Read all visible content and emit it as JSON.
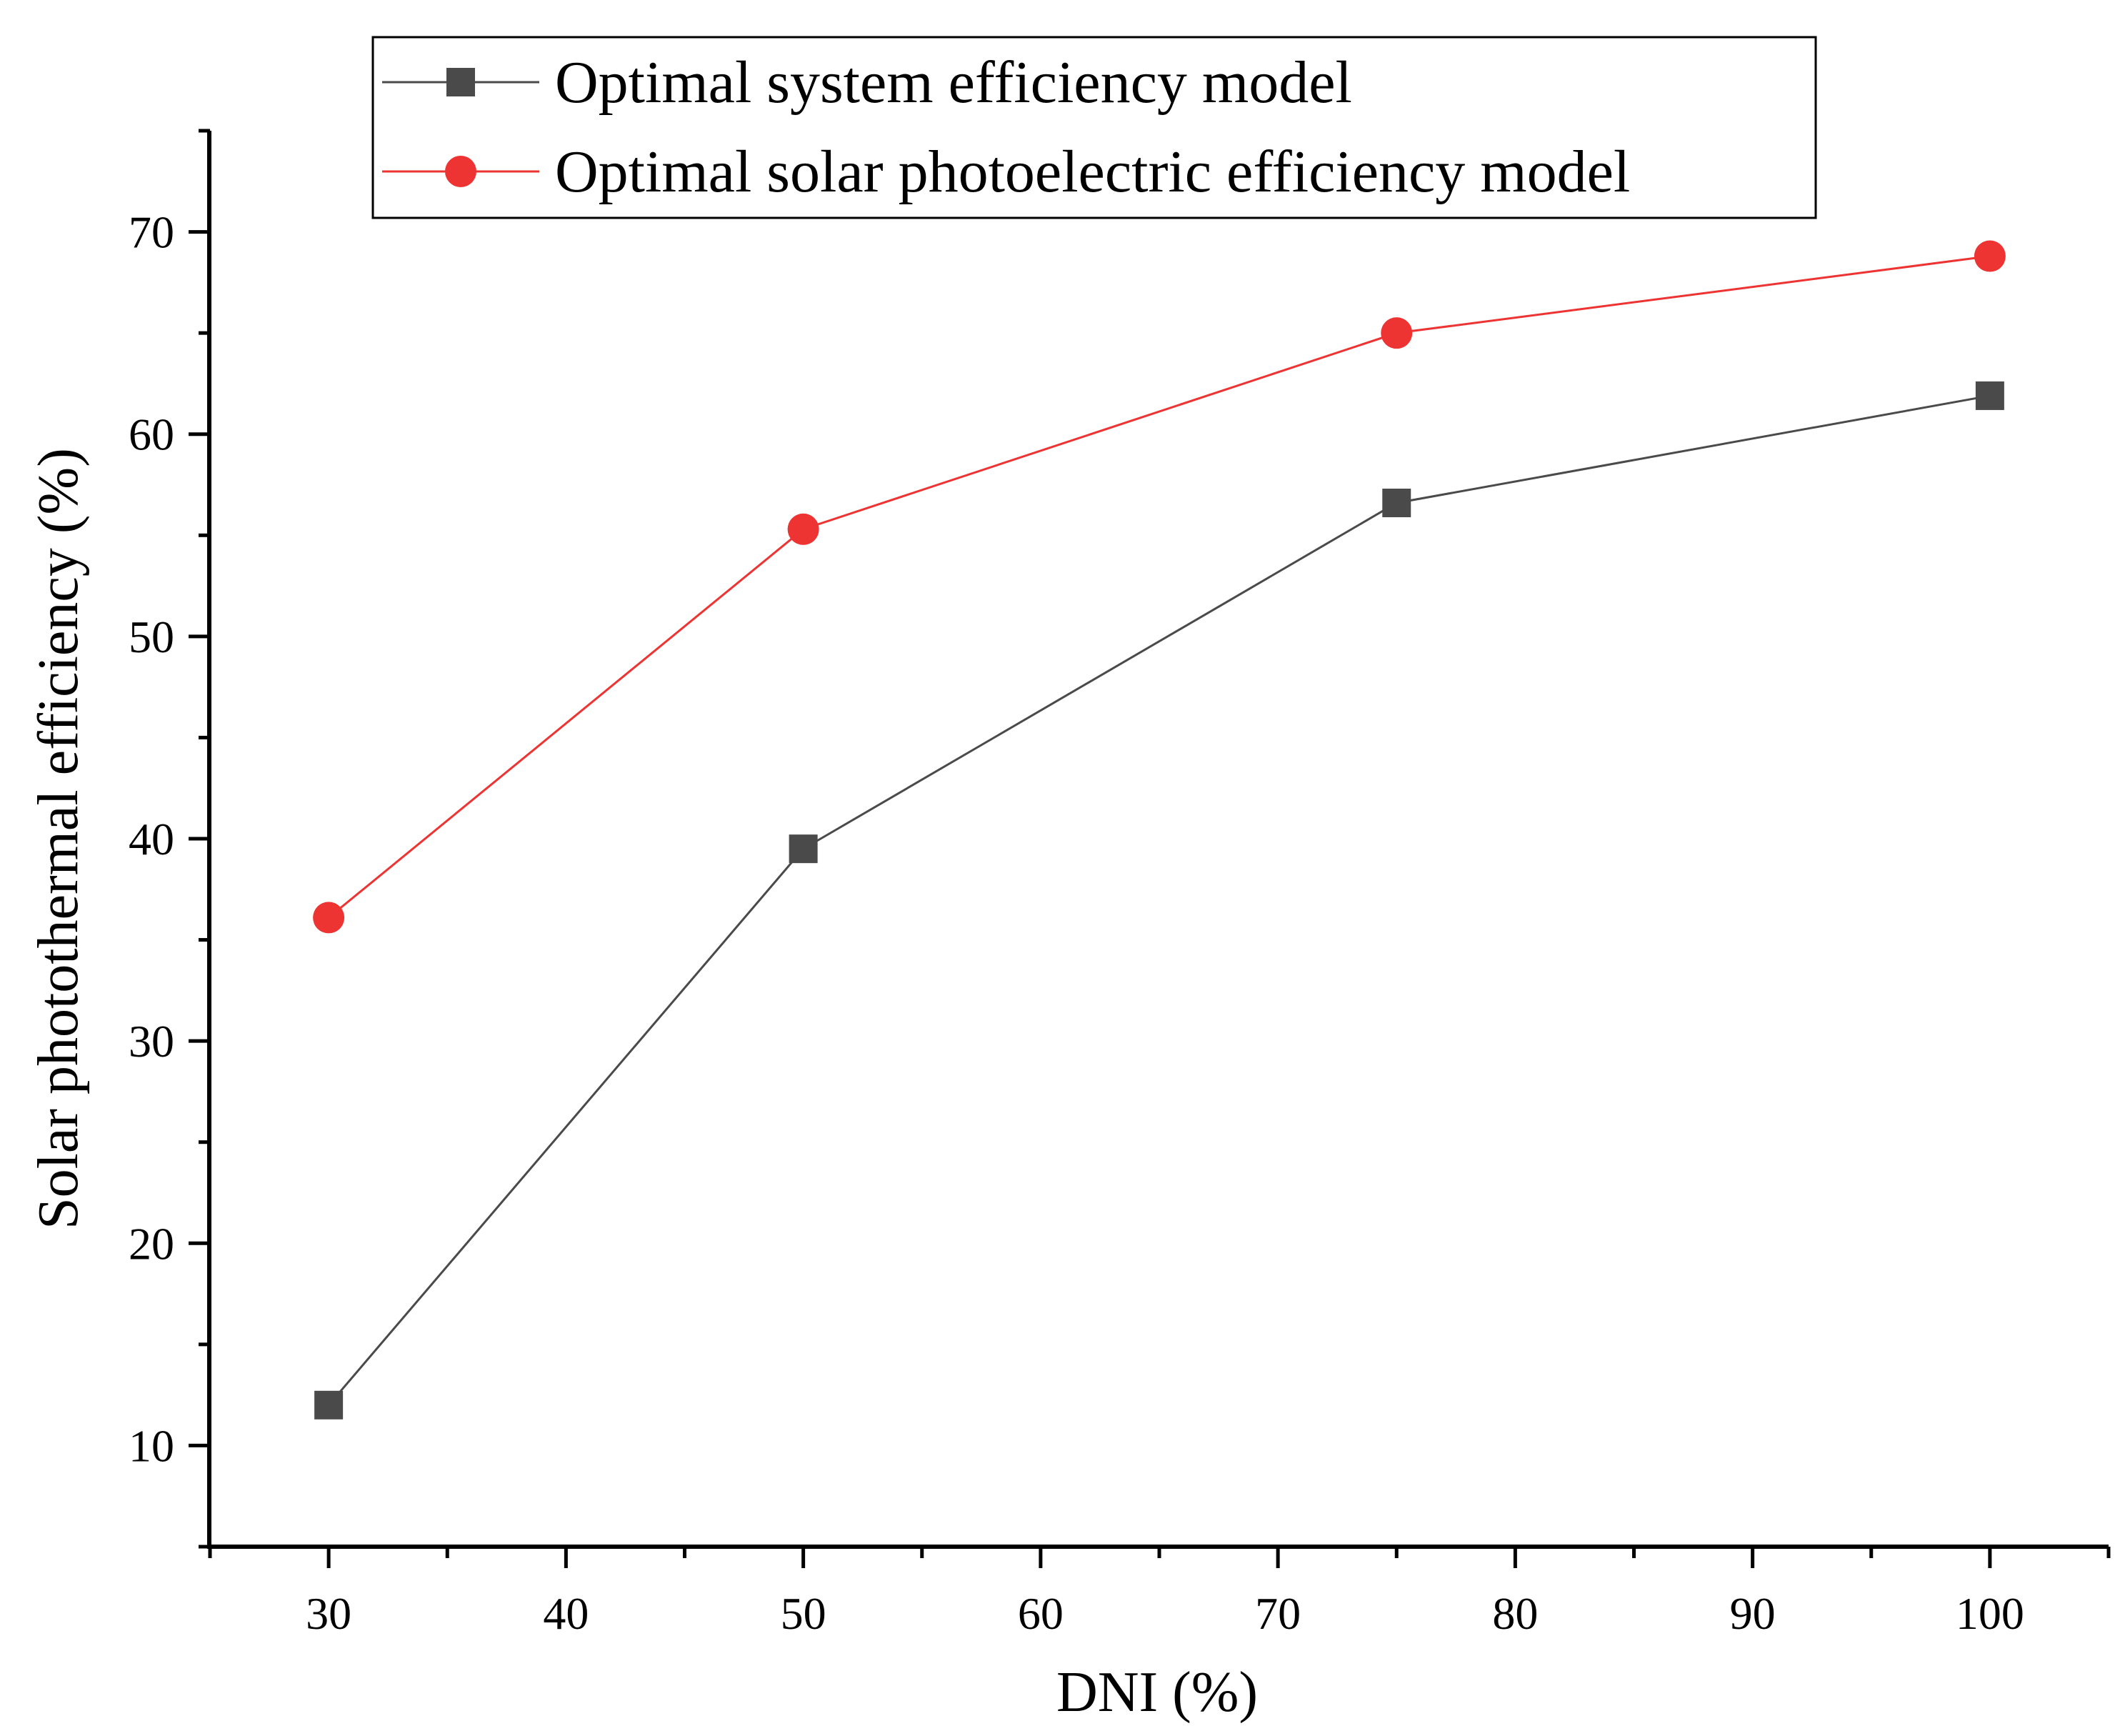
{
  "chart_data": {
    "type": "line",
    "title": "",
    "xlabel": "DNI (%)",
    "ylabel": "Solar photothermal efficiency (%)",
    "xlim": [
      25,
      105
    ],
    "ylim": [
      5,
      75
    ],
    "xticks": [
      30,
      40,
      50,
      60,
      70,
      80,
      90,
      100
    ],
    "yticks": [
      10,
      20,
      30,
      40,
      50,
      60,
      70
    ],
    "grid": false,
    "legend_position": "top",
    "series": [
      {
        "name": "Optimal system efficiency model",
        "marker": "square",
        "color": "#4a4a4a",
        "x": [
          30,
          50,
          75,
          100
        ],
        "y": [
          12.0,
          39.5,
          56.6,
          61.9
        ]
      },
      {
        "name": "Optimal solar photoelectric efficiency model",
        "marker": "circle",
        "color": "#ee3333",
        "x": [
          30,
          50,
          75,
          100
        ],
        "y": [
          36.1,
          55.3,
          65.0,
          68.8
        ]
      }
    ]
  }
}
